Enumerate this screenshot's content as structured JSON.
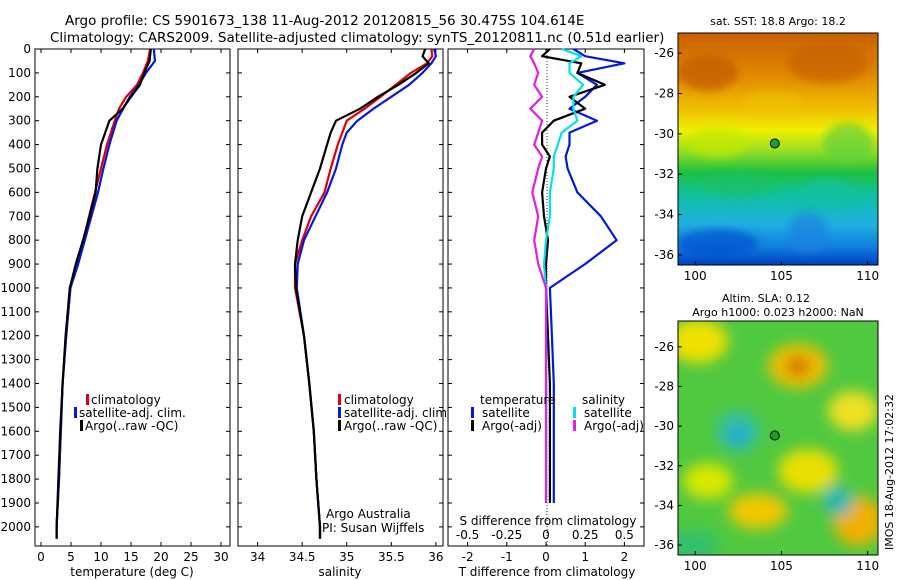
{
  "header": {
    "line1": "Argo profile: CS 5901673_138 11-Aug-2012 20120815_56 30.475S 104.614E",
    "line2": "Climatology: CARS2009. Satellite-adjusted climatology: synTS_20120811.nc (0.51d earlier)"
  },
  "footer_vertical": "IMOS 18-Aug-2012 17:02:32",
  "colors": {
    "climatology": "#e00000",
    "satellite": "#0018e0",
    "argo": "#000000",
    "sat_salt": "#00e0ee",
    "argo_salt": "#e020e0"
  },
  "chart_data": [
    {
      "type": "line",
      "id": "temperature",
      "xlabel": "temperature (deg C)",
      "ylabel": "",
      "xlim": [
        -1,
        31.5
      ],
      "ylim": [
        2080,
        0
      ],
      "xticks": [
        0,
        5,
        10,
        15,
        20,
        25,
        30
      ],
      "yticks": [
        0,
        100,
        200,
        300,
        400,
        500,
        600,
        700,
        800,
        900,
        1000,
        1100,
        1200,
        1300,
        1400,
        1500,
        1600,
        1700,
        1800,
        1900,
        2000
      ],
      "depth": [
        0,
        50,
        100,
        150,
        200,
        250,
        300,
        400,
        500,
        600,
        700,
        800,
        900,
        1000,
        1200,
        1400,
        1600,
        1800,
        2000,
        2050
      ],
      "series": [
        {
          "name": "climatology",
          "color_key": "climatology",
          "values": [
            18.2,
            17.8,
            17.0,
            16.0,
            14.2,
            13.0,
            12.3,
            11.0,
            10.0,
            9.0,
            8.0,
            7.1,
            6.0,
            4.9,
            4.2,
            3.6,
            3.3,
            3.0,
            2.6,
            2.6
          ]
        },
        {
          "name": "satellite-adj. clim.",
          "color_key": "satellite",
          "values": [
            18.8,
            19.0,
            17.5,
            16.3,
            14.8,
            13.7,
            12.6,
            11.4,
            10.4,
            9.5,
            8.4,
            7.3,
            6.2,
            4.9,
            4.2,
            3.6,
            3.3,
            3.0,
            2.6,
            2.6
          ]
        },
        {
          "name": "Argo(..raw -QC)",
          "color_key": "argo",
          "values": [
            18.3,
            18.1,
            17.2,
            16.5,
            15.0,
            13.6,
            11.4,
            10.0,
            9.4,
            9.1,
            8.1,
            7.0,
            5.8,
            4.8,
            4.1,
            3.6,
            3.2,
            2.9,
            2.6,
            2.6
          ]
        }
      ]
    },
    {
      "type": "line",
      "id": "salinity",
      "xlabel": "salinity",
      "ylabel": "",
      "xlim": [
        33.78,
        36.08
      ],
      "ylim": [
        2080,
        0
      ],
      "xticks": [
        34,
        34.5,
        35,
        35.5,
        36
      ],
      "depth": [
        0,
        30,
        60,
        100,
        150,
        200,
        250,
        300,
        350,
        400,
        500,
        600,
        700,
        800,
        900,
        1000,
        1200,
        1400,
        1600,
        1800,
        2000,
        2050
      ],
      "series": [
        {
          "name": "climatology",
          "color_key": "climatology",
          "values": [
            35.95,
            35.96,
            35.9,
            35.72,
            35.55,
            35.38,
            35.2,
            35.0,
            34.95,
            34.9,
            34.82,
            34.75,
            34.6,
            34.5,
            34.42,
            34.42,
            34.52,
            34.58,
            34.63,
            34.66,
            34.7,
            34.7
          ]
        },
        {
          "name": "satellite-adj. clim.",
          "color_key": "satellite",
          "values": [
            35.98,
            36.0,
            35.95,
            35.85,
            35.7,
            35.5,
            35.3,
            35.12,
            35.0,
            34.95,
            34.88,
            34.78,
            34.65,
            34.52,
            34.45,
            34.44,
            34.52,
            34.58,
            34.63,
            34.66,
            34.7,
            34.7
          ]
        },
        {
          "name": "Argo(..raw -QC)",
          "color_key": "argo",
          "values": [
            35.88,
            35.85,
            35.92,
            35.78,
            35.58,
            35.35,
            35.15,
            34.88,
            34.82,
            34.78,
            34.7,
            34.6,
            34.5,
            34.45,
            34.42,
            34.43,
            34.52,
            34.58,
            34.63,
            34.66,
            34.7,
            34.7
          ]
        }
      ]
    },
    {
      "type": "line",
      "id": "difference",
      "xlabel": "T difference from climatology",
      "title_inside": "S difference from climatology",
      "xlim": [
        -2.5,
        2.5
      ],
      "ylim": [
        2080,
        0
      ],
      "xticks": [
        -2,
        -1,
        0,
        1,
        2
      ],
      "s_ticks_labels": [
        "-0.5",
        "-0.25",
        "0",
        "0.25",
        "0.5"
      ],
      "s_ticks_positions": [
        -2,
        -1,
        0,
        1,
        2
      ],
      "depth": [
        0,
        30,
        60,
        100,
        150,
        200,
        250,
        300,
        350,
        400,
        450,
        500,
        600,
        700,
        800,
        900,
        1000,
        1200,
        1400,
        1600,
        1800,
        1900
      ],
      "series": [
        {
          "name": "satellite",
          "group": "temperature",
          "color_key": "satellite",
          "values": [
            0.7,
            1.0,
            2.0,
            0.8,
            1.3,
            1.0,
            0.6,
            1.3,
            0.6,
            0.6,
            0.5,
            0.55,
            0.8,
            1.4,
            1.8,
            1.0,
            0.1,
            0.15,
            0.2,
            0.2,
            0.2,
            0.2
          ]
        },
        {
          "name": "Argo(-adj)",
          "group": "temperature",
          "color_key": "argo",
          "values": [
            0.1,
            -0.1,
            0.9,
            0.8,
            1.5,
            0.6,
            1.0,
            0.2,
            -0.1,
            -0.1,
            0.1,
            0.0,
            -0.1,
            -0.05,
            0.05,
            0.0,
            0.0,
            0.05,
            0.1,
            0.1,
            0.1,
            0.1
          ]
        },
        {
          "name": "satellite",
          "group": "salinity",
          "color_key": "sat_salt",
          "values": [
            0.4,
            0.9,
            0.6,
            0.6,
            0.95,
            0.7,
            0.7,
            0.8,
            0.4,
            0.3,
            0.2,
            0.2,
            0.1,
            0.1,
            0.0,
            -0.05,
            0.0,
            0.0,
            0.0,
            0.0,
            0.0,
            0.0
          ]
        },
        {
          "name": "Argo(-adj)",
          "group": "salinity",
          "color_key": "argo_salt",
          "values": [
            -0.3,
            -0.4,
            -0.3,
            -0.2,
            -0.3,
            -0.1,
            -0.4,
            -0.1,
            -0.2,
            -0.3,
            -0.1,
            -0.2,
            -0.35,
            -0.2,
            -0.3,
            -0.2,
            0.0,
            0.0,
            0.0,
            0.0,
            0.0,
            0.0
          ]
        }
      ],
      "legend": {
        "temperature_title": "temperature",
        "salinity_title": "salinity"
      }
    },
    {
      "type": "heatmap",
      "id": "sst_map",
      "title": "sat. SST: 18.8 Argo: 18.2",
      "xlim": [
        99,
        110.6
      ],
      "ylim": [
        -36.5,
        -25
      ],
      "xticks": [
        100,
        105,
        110
      ],
      "yticks": [
        -26,
        -28,
        -30,
        -32,
        -34,
        -36
      ],
      "marker": [
        104.614,
        -30.475
      ]
    },
    {
      "type": "heatmap",
      "id": "sla_map",
      "title": "Altim. SLA: 0.12",
      "subtitle": "Argo h1000: 0.023 h2000: NaN",
      "xlim": [
        99,
        110.6
      ],
      "ylim": [
        -36.5,
        -24.7
      ],
      "xticks": [
        100,
        105,
        110
      ],
      "yticks": [
        -26,
        -28,
        -30,
        -32,
        -34,
        -36
      ],
      "marker": [
        104.614,
        -30.475
      ]
    }
  ],
  "legends": {
    "temperature": [
      "climatology",
      "satellite-adj. clim.",
      "Argo(..raw -QC)"
    ],
    "salinity": [
      "climatology",
      "satellite-adj. clim.",
      "Argo(..raw -QC)"
    ],
    "salinity_note1": "Argo Australia",
    "salinity_note2": "PI: Susan Wijffels"
  }
}
